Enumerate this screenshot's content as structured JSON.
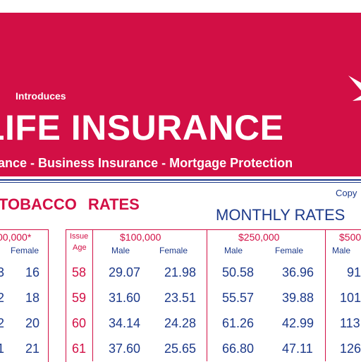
{
  "banner": {
    "introduces": "Introduces",
    "headline": "LIFE INSURANCE",
    "tagline": "ance - Business Insurance - Mortgage Protection",
    "bg_color": "#d20f45"
  },
  "section": {
    "rates_title": "TOBACCO  RATES",
    "copy_text": "Copy",
    "monthly_title": "MONTHLY RATES"
  },
  "left_table": {
    "coverage": "00,000*",
    "gender_header": "Female",
    "partial_col": [
      "3",
      "2",
      "2",
      "1"
    ],
    "female_col": [
      "16",
      "18",
      "20",
      "21"
    ]
  },
  "rates_table": {
    "issue_age_header": [
      "Issue",
      "Age"
    ],
    "coverage_headers": [
      "$100,000",
      "$250,000",
      "$500"
    ],
    "gender_headers": [
      "Male",
      "Female",
      "Male",
      "Female",
      "Male"
    ],
    "rows": [
      {
        "age": "58",
        "m100": "29.07",
        "f100": "21.98",
        "m250": "50.58",
        "f250": "36.96",
        "m500": "91"
      },
      {
        "age": "59",
        "m100": "31.60",
        "f100": "23.51",
        "m250": "55.57",
        "f250": "39.88",
        "m500": "101"
      },
      {
        "age": "60",
        "m100": "34.14",
        "f100": "24.28",
        "m250": "61.26",
        "f250": "42.99",
        "m500": "113"
      },
      {
        "age": "61",
        "m100": "37.60",
        "f100": "25.65",
        "m250": "66.80",
        "f250": "47.11",
        "m500": "126"
      }
    ]
  }
}
